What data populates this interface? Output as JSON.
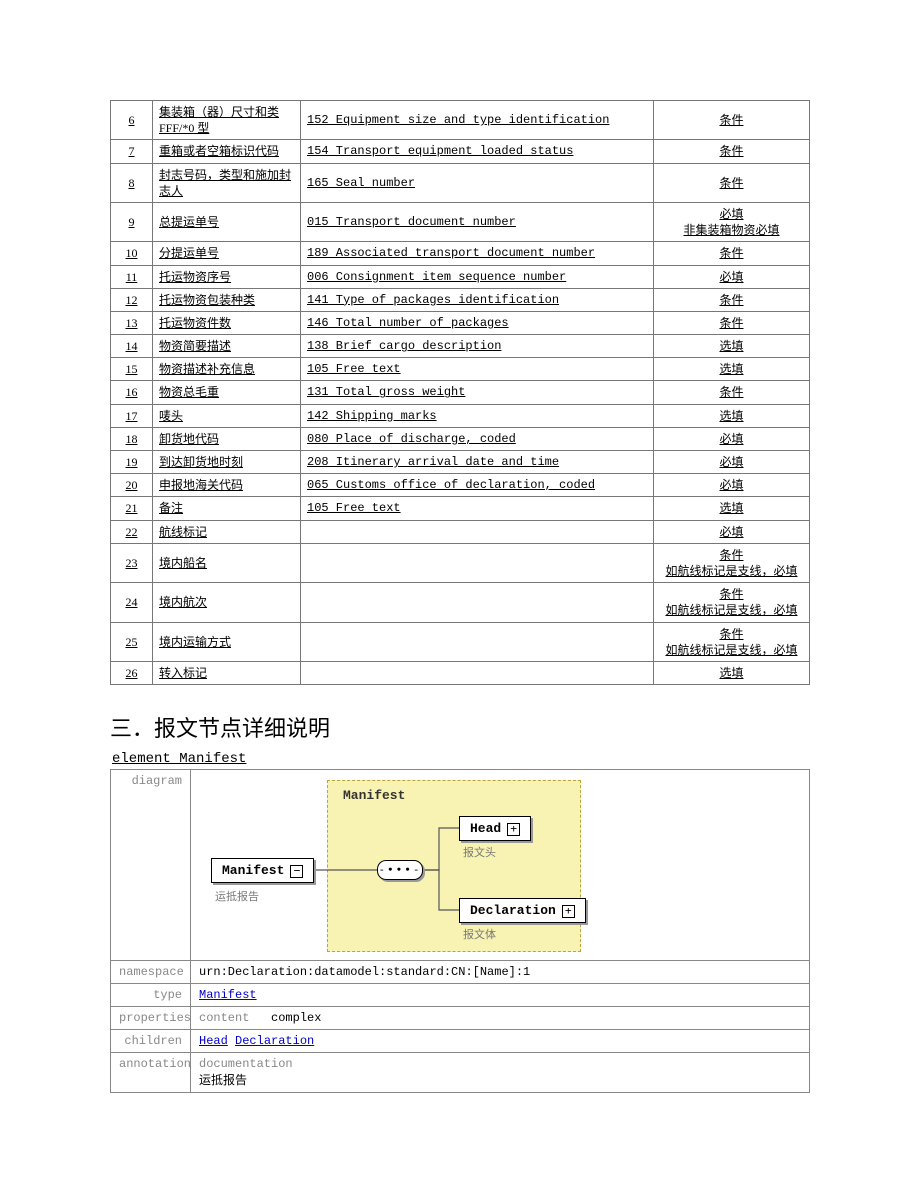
{
  "table": {
    "rows": [
      {
        "n": "6",
        "cn": "集装箱（器）尺寸和类FFF/*0 型",
        "en": "152 Equipment size and type identification",
        "req": "条件"
      },
      {
        "n": "7",
        "cn": "重箱或者空箱标识代码",
        "en": "154 Transport equipment loaded status",
        "req": "条件"
      },
      {
        "n": "8",
        "cn": "封志号码，类型和施加封志人",
        "en": "165 Seal number",
        "req": "条件"
      },
      {
        "n": "9",
        "cn": "总提运单号",
        "en": "015 Transport document number",
        "req": "必填\n非集装箱物资必填"
      },
      {
        "n": "10",
        "cn": "分提运单号",
        "en": "189 Associated transport document number",
        "req": "条件"
      },
      {
        "n": "11",
        "cn": "托运物资序号",
        "en": "006 Consignment item sequence number",
        "req": "必填"
      },
      {
        "n": "12",
        "cn": "托运物资包装种类",
        "en": "141 Type of packages identification",
        "req": "条件"
      },
      {
        "n": "13",
        "cn": "托运物资件数",
        "en": "146 Total number of packages",
        "req": "条件"
      },
      {
        "n": "14",
        "cn": "物资简要描述",
        "en": "138 Brief cargo description",
        "req": "选填"
      },
      {
        "n": "15",
        "cn": "物资描述补充信息",
        "en": "105 Free text",
        "req": "选填"
      },
      {
        "n": "16",
        "cn": "物资总毛重",
        "en": "131 Total gross weight",
        "req": "条件"
      },
      {
        "n": "17",
        "cn": "唛头",
        "en": "142 Shipping marks",
        "req": "选填"
      },
      {
        "n": "18",
        "cn": "卸货地代码",
        "en": "080 Place of discharge, coded",
        "req": "必填"
      },
      {
        "n": "19",
        "cn": "到达卸货地时刻",
        "en": "208 Itinerary arrival date and time",
        "req": "必填"
      },
      {
        "n": "20",
        "cn": "申报地海关代码",
        "en": "065 Customs office of declaration, coded",
        "req": "必填"
      },
      {
        "n": "21",
        "cn": "备注",
        "en": "105 Free text",
        "req": "选填"
      },
      {
        "n": "22",
        "cn": "航线标记",
        "en": "",
        "req": "必填"
      },
      {
        "n": "23",
        "cn": "境内船名",
        "en": "",
        "req": "条件\n如航线标记是支线，必填"
      },
      {
        "n": "24",
        "cn": "境内航次",
        "en": "",
        "req": "条件\n如航线标记是支线，必填"
      },
      {
        "n": "25",
        "cn": "境内运输方式",
        "en": "",
        "req": "条件\n如航线标记是支线，必填"
      },
      {
        "n": "26",
        "cn": "转入标记",
        "en": "",
        "req": "选填"
      }
    ]
  },
  "section_heading": "三．报文节点详细说明",
  "element_title": "element Manifest",
  "diagram": {
    "container_label": "Manifest",
    "root": {
      "label": "Manifest",
      "caption": "运抵报告"
    },
    "child1": {
      "label": "Head",
      "caption": "报文头"
    },
    "child2": {
      "label": "Declaration",
      "caption": "报文体"
    },
    "seq": "-∙∙∙-"
  },
  "props": {
    "namespace_label": "namespace",
    "namespace_value": "urn:Declaration:datamodel:standard:CN:[Name]:1",
    "type_label": "type",
    "type_value": "Manifest",
    "properties_label": "properties",
    "properties_key": "content",
    "properties_value": "complex",
    "children_label": "children",
    "children_value1": "Head",
    "children_value2": "Declaration",
    "annotation_label": "annotation",
    "annotation_key": "documentation",
    "annotation_value": "运抵报告"
  }
}
